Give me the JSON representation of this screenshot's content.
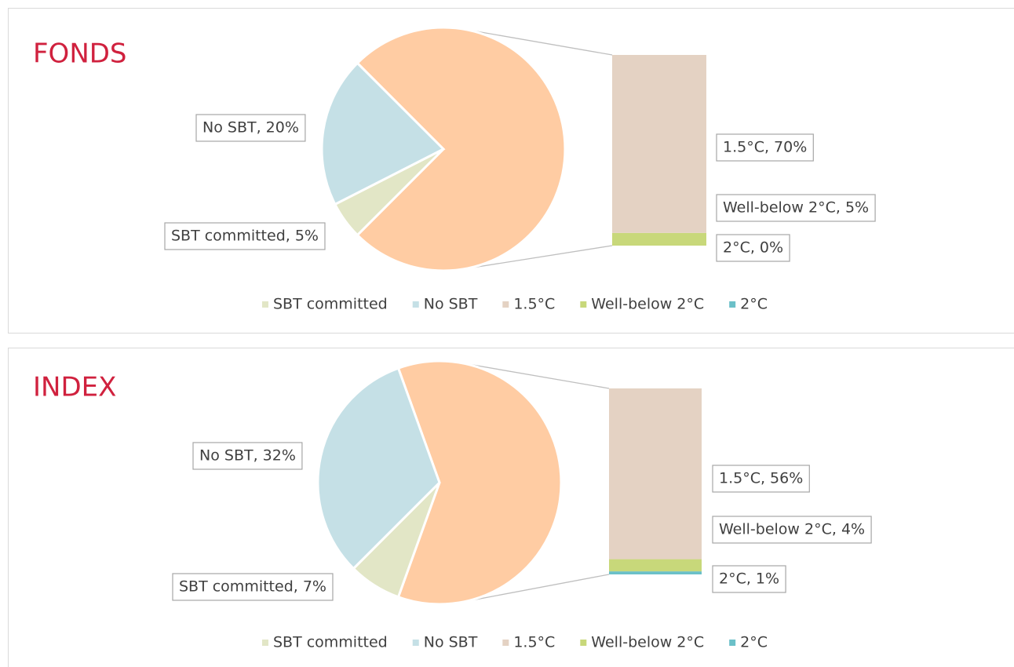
{
  "chart_data": [
    {
      "type": "pie",
      "title": "FONDS",
      "categories": [
        "SBT committed",
        "No SBT",
        "1.5°C",
        "Well-below 2°C",
        "2°C"
      ],
      "values": [
        5,
        20,
        70,
        5,
        0
      ],
      "value_labels": [
        "SBT committed, 5%",
        "No SBT, 20%",
        "1.5°C, 70%",
        "Well-below 2°C, 5%",
        "2°C, 0%"
      ],
      "colors": [
        "#e2e6c6",
        "#c5e0e6",
        "#e4d2c3",
        "#c8d87a",
        "#6bc0c8"
      ],
      "other_color": "#ffcca3"
    },
    {
      "type": "pie",
      "title": "INDEX",
      "categories": [
        "SBT committed",
        "No SBT",
        "1.5°C",
        "Well-below 2°C",
        "2°C"
      ],
      "values": [
        7,
        32,
        56,
        4,
        1
      ],
      "value_labels": [
        "SBT committed, 7%",
        "No SBT, 32%",
        "1.5°C, 56%",
        "Well-below 2°C, 4%",
        "2°C, 1%"
      ],
      "colors": [
        "#e2e6c6",
        "#c5e0e6",
        "#e4d2c3",
        "#c8d87a",
        "#6bc0c8"
      ],
      "other_color": "#ffcca3"
    }
  ]
}
